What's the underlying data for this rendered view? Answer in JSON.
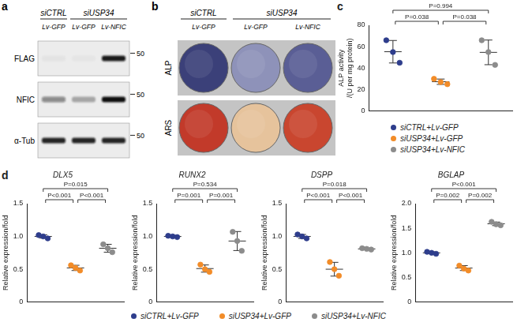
{
  "panel_a": {
    "label": "a",
    "groups": [
      "siCTRL",
      "siUSP34",
      "siUSP34"
    ],
    "lanes": [
      "Lv-GFP",
      "Lv-GFP",
      "Lv-NFIC"
    ],
    "rows": [
      {
        "label": "FLAG",
        "marker": 50,
        "intensity": [
          0.04,
          0.03,
          0.95
        ]
      },
      {
        "label": "NFIC",
        "marker": 50,
        "intensity": [
          0.45,
          0.3,
          1.0
        ]
      },
      {
        "label": "α-Tub",
        "marker": 50,
        "intensity": [
          0.9,
          0.9,
          0.9
        ]
      }
    ]
  },
  "panel_b": {
    "label": "b",
    "groups": [
      "siCTRL",
      "siUSP34",
      "siUSP34"
    ],
    "lanes": [
      "Lv-GFP",
      "Lv-GFP",
      "Lv-NFIC"
    ],
    "rows": [
      {
        "label": "ALP",
        "colors": [
          "#3b4079",
          "#8e92b9",
          "#5a5e95"
        ]
      },
      {
        "label": "ARS",
        "colors": [
          "#c23a2a",
          "#e6c39c",
          "#c9462f"
        ]
      }
    ]
  },
  "chart_data": [
    {
      "panel": "c",
      "type": "scatter",
      "y_label": [
        "ALP activity",
        "/(U per mg protein)"
      ],
      "ylim": [
        0,
        80
      ],
      "yticks": [
        0,
        20,
        40,
        60,
        80
      ],
      "grid": false,
      "tick_labels": "y",
      "legend": "bottom",
      "series": [
        {
          "name": "siCTRL+Lv-GFP",
          "color": "#2e3d8c",
          "marker": "circle",
          "values": [
            66,
            55,
            45
          ],
          "mean": 55.3,
          "sd": 10.5
        },
        {
          "name": "siUSP34+Lv-GFP",
          "color": "#f28c28",
          "marker": "circle",
          "values": [
            30,
            27,
            25
          ],
          "mean": 27.3,
          "sd": 2.5
        },
        {
          "name": "siUSP34+Lv-NFIC",
          "color": "#8c8c8c",
          "marker": "circle",
          "values": [
            66,
            55,
            43
          ],
          "mean": 54.7,
          "sd": 11.5
        }
      ],
      "annotations": [
        {
          "text": "P=0.994",
          "between": [
            "siCTRL+Lv-GFP",
            "siUSP34+Lv-NFIC"
          ]
        },
        {
          "text": "P=0.038",
          "between": [
            "siCTRL+Lv-GFP",
            "siUSP34+Lv-GFP"
          ]
        },
        {
          "text": "P=0.038",
          "between": [
            "siUSP34+Lv-GFP",
            "siUSP34+Lv-NFIC"
          ]
        }
      ]
    },
    {
      "panel": "d",
      "type": "scatter",
      "title": "DLX5",
      "y_label": "Relative expression/fold",
      "ylim": [
        0,
        1.5
      ],
      "yticks": [
        0,
        0.5,
        {
          "value": 1,
          "label": "1.0"
        },
        1.5
      ],
      "grid": false,
      "tick_labels": "y",
      "legend": "bottom",
      "series": [
        {
          "name": "siCTRL+Lv-GFP",
          "color": "#2e3d8c",
          "marker": "circle",
          "values": [
            1.02,
            1.0,
            0.97
          ],
          "mean": 1.0,
          "sd": 0.025
        },
        {
          "name": "siUSP34+Lv-GFP",
          "color": "#f28c28",
          "marker": "circle",
          "values": [
            0.56,
            0.52,
            0.48
          ],
          "mean": 0.52,
          "sd": 0.04
        },
        {
          "name": "siUSP34+Lv-NFIC",
          "color": "#8c8c8c",
          "marker": "circle",
          "values": [
            0.88,
            0.82,
            0.76
          ],
          "mean": 0.82,
          "sd": 0.06
        }
      ],
      "annotations": [
        {
          "text": "P=0.015",
          "between": [
            "siCTRL+Lv-GFP",
            "siUSP34+Lv-NFIC"
          ]
        },
        {
          "text": "P<0.001",
          "between": [
            "siCTRL+Lv-GFP",
            "siUSP34+Lv-GFP"
          ]
        },
        {
          "text": "P<0.001",
          "between": [
            "siUSP34+Lv-GFP",
            "siUSP34+Lv-NFIC"
          ]
        }
      ]
    },
    {
      "panel": "d",
      "type": "scatter",
      "title": "RUNX2",
      "y_label": "Relative expression/fold",
      "ylim": [
        0,
        1.5
      ],
      "yticks": [
        0,
        0.5,
        {
          "value": 1,
          "label": "1.0"
        },
        1.5
      ],
      "grid": false,
      "tick_labels": "y",
      "legend": "bottom",
      "series": [
        {
          "name": "siCTRL+Lv-GFP",
          "color": "#2e3d8c",
          "marker": "circle",
          "values": [
            1.01,
            1.0,
            0.99
          ],
          "mean": 1.0,
          "sd": 0.01
        },
        {
          "name": "siUSP34+Lv-GFP",
          "color": "#f28c28",
          "marker": "circle",
          "values": [
            0.57,
            0.5,
            0.46
          ],
          "mean": 0.51,
          "sd": 0.055
        },
        {
          "name": "siUSP34+Lv-NFIC",
          "color": "#8c8c8c",
          "marker": "circle",
          "values": [
            1.07,
            0.93,
            0.78
          ],
          "mean": 0.93,
          "sd": 0.145
        }
      ],
      "annotations": [
        {
          "text": "P=0.534",
          "between": [
            "siCTRL+Lv-GFP",
            "siUSP34+Lv-NFIC"
          ]
        },
        {
          "text": "P=0.001",
          "between": [
            "siCTRL+Lv-GFP",
            "siUSP34+Lv-GFP"
          ]
        },
        {
          "text": "P=0.001",
          "between": [
            "siUSP34+Lv-GFP",
            "siUSP34+Lv-NFIC"
          ]
        }
      ]
    },
    {
      "panel": "d",
      "type": "scatter",
      "title": "DSPP",
      "y_label": "Relative expression/fold",
      "ylim": [
        0,
        1.5
      ],
      "yticks": [
        0,
        0.5,
        {
          "value": 1,
          "label": "1.0"
        },
        1.5
      ],
      "grid": false,
      "tick_labels": "y",
      "legend": "bottom",
      "series": [
        {
          "name": "siCTRL+Lv-GFP",
          "color": "#2e3d8c",
          "marker": "circle",
          "values": [
            1.03,
            1.0,
            0.97
          ],
          "mean": 1.0,
          "sd": 0.03
        },
        {
          "name": "siUSP34+Lv-GFP",
          "color": "#f28c28",
          "marker": "circle",
          "values": [
            0.61,
            0.5,
            0.4
          ],
          "mean": 0.5,
          "sd": 0.105
        },
        {
          "name": "siUSP34+Lv-NFIC",
          "color": "#8c8c8c",
          "marker": "circle",
          "values": [
            0.82,
            0.81,
            0.8
          ],
          "mean": 0.81,
          "sd": 0.01
        }
      ],
      "annotations": [
        {
          "text": "P=0.018",
          "between": [
            "siCTRL+Lv-GFP",
            "siUSP34+Lv-NFIC"
          ]
        },
        {
          "text": "P<0.001",
          "between": [
            "siCTRL+Lv-GFP",
            "siUSP34+Lv-GFP"
          ]
        },
        {
          "text": "P<0.001",
          "between": [
            "siUSP34+Lv-GFP",
            "siUSP34+Lv-NFIC"
          ]
        }
      ]
    },
    {
      "panel": "d",
      "type": "scatter",
      "title": "BGLAP",
      "y_label": "Relative expression/fold",
      "ylim": [
        0,
        2
      ],
      "yticks": [
        0,
        0.5,
        {
          "value": 1,
          "label": "1.0"
        },
        1.5,
        {
          "value": 2,
          "label": "2.0"
        }
      ],
      "grid": false,
      "tick_labels": "y",
      "legend": "bottom",
      "series": [
        {
          "name": "siCTRL+Lv-GFP",
          "color": "#2e3d8c",
          "marker": "circle",
          "values": [
            1.02,
            1.0,
            0.98
          ],
          "mean": 1.0,
          "sd": 0.02
        },
        {
          "name": "siUSP34+Lv-GFP",
          "color": "#f28c28",
          "marker": "circle",
          "values": [
            0.74,
            0.68,
            0.64
          ],
          "mean": 0.69,
          "sd": 0.05
        },
        {
          "name": "siUSP34+Lv-NFIC",
          "color": "#8c8c8c",
          "marker": "circle",
          "values": [
            1.63,
            1.58,
            1.56
          ],
          "mean": 1.59,
          "sd": 0.036
        }
      ],
      "annotations": [
        {
          "text": "P<0.001",
          "between": [
            "siCTRL+Lv-GFP",
            "siUSP34+Lv-NFIC"
          ]
        },
        {
          "text": "P=0.002",
          "between": [
            "siCTRL+Lv-GFP",
            "siUSP34+Lv-GFP"
          ]
        },
        {
          "text": "P=0.002",
          "between": [
            "siUSP34+Lv-GFP",
            "siUSP34+Lv-NFIC"
          ]
        }
      ]
    }
  ]
}
